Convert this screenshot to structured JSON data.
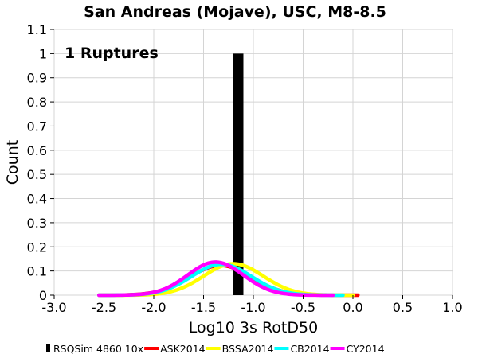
{
  "chart_data": {
    "type": "line",
    "title": "San Andreas (Mojave), USC, M8-8.5",
    "xlabel": "Log10 3s RotD50",
    "ylabel": "Count",
    "xlim": [
      -3.0,
      1.0
    ],
    "ylim": [
      0,
      1.1
    ],
    "x_ticks": [
      "-3.0",
      "-2.5",
      "-2.0",
      "-1.5",
      "-1.0",
      "-0.5",
      "0.0",
      "0.5",
      "1.0"
    ],
    "y_ticks": [
      "0",
      "0.1",
      "0.2",
      "0.3",
      "0.4",
      "0.5",
      "0.6",
      "0.7",
      "0.8",
      "0.9",
      "1",
      "1.1"
    ],
    "grid": true,
    "legend_position": "bottom",
    "annotation": "1 Ruptures",
    "bar": {
      "name": "RSQSim 4860 10x",
      "x_left": -1.2,
      "x_right": -1.1,
      "value": 1.0,
      "color": "#000000"
    },
    "series": [
      {
        "name": "ASK2014",
        "color": "#ff0000",
        "mean": -1.33,
        "sigma": 0.31,
        "peak": 0.123,
        "x_start": -2.55,
        "x_end": 0.05
      },
      {
        "name": "BSSA2014",
        "color": "#ffff00",
        "mean": -1.2,
        "sigma": 0.3,
        "peak": 0.13,
        "x_start": -2.55,
        "x_end": 0.0
      },
      {
        "name": "CB2014",
        "color": "#00ffff",
        "mean": -1.32,
        "sigma": 0.3,
        "peak": 0.128,
        "x_start": -2.55,
        "x_end": -0.1
      },
      {
        "name": "CY2014",
        "color": "#ff00ff",
        "mean": -1.38,
        "sigma": 0.28,
        "peak": 0.137,
        "x_start": -2.55,
        "x_end": -0.2
      }
    ]
  }
}
